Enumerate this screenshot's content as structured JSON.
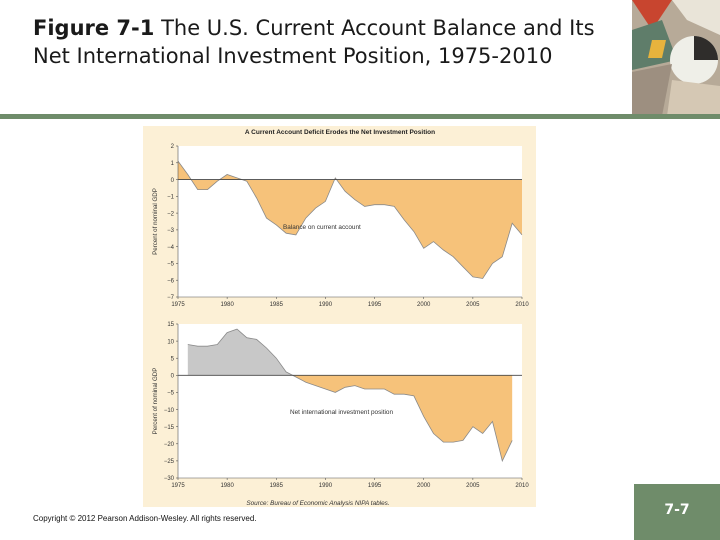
{
  "slide": {
    "figure_label": "Figure 7-1",
    "title_text": "The U.S. Current Account Balance and Its Net International Investment Position, 1975-2010",
    "copyright": "Copyright © 2012 Pearson Addison-Wesley. All rights reserved.",
    "page_number": "7-7",
    "source_note": "Source: Bureau of Economic Analysis NIPA tables.",
    "colors": {
      "panel": "#fcf0d6",
      "plot_bg": "#ffffff",
      "area_negative": "#f6c27a",
      "area_positive": "#c8c8c8",
      "line": "#8a8a8a",
      "accent": "#6f8c6a"
    }
  },
  "chart_data": [
    {
      "type": "area",
      "title": "A Current Account Deficit Erodes the Net Investment Position",
      "ylabel": "Percent of nominal GDP",
      "annotation": "Balance on current account",
      "xlim": [
        1975,
        2010
      ],
      "ylim": [
        -7,
        2
      ],
      "yticks": [
        2,
        1,
        0,
        -1,
        -2,
        -3,
        -4,
        -5,
        -6,
        -7
      ],
      "xticks": [
        1975,
        1980,
        1985,
        1990,
        1995,
        2000,
        2005,
        2010
      ],
      "x": [
        1975,
        1976,
        1977,
        1978,
        1979,
        1980,
        1981,
        1982,
        1983,
        1984,
        1985,
        1986,
        1987,
        1988,
        1989,
        1990,
        1991,
        1992,
        1993,
        1994,
        1995,
        1996,
        1997,
        1998,
        1999,
        2000,
        2001,
        2002,
        2003,
        2004,
        2005,
        2006,
        2007,
        2008,
        2009,
        2010
      ],
      "values": [
        1.1,
        0.3,
        -0.6,
        -0.6,
        -0.1,
        0.3,
        0.1,
        -0.1,
        -1.1,
        -2.3,
        -2.7,
        -3.2,
        -3.3,
        -2.3,
        -1.7,
        -1.3,
        0.1,
        -0.7,
        -1.2,
        -1.6,
        -1.5,
        -1.5,
        -1.6,
        -2.4,
        -3.1,
        -4.1,
        -3.7,
        -4.2,
        -4.6,
        -5.2,
        -5.8,
        -5.9,
        -5.0,
        -4.6,
        -2.6,
        -3.3
      ]
    },
    {
      "type": "area",
      "title": "",
      "ylabel": "Percent of nominal GDP",
      "annotation": "Net international investment position",
      "xlim": [
        1975,
        2010
      ],
      "ylim": [
        -30,
        15
      ],
      "yticks": [
        15,
        10,
        5,
        0,
        -5,
        -10,
        -15,
        -20,
        -25,
        -30
      ],
      "xticks": [
        1975,
        1980,
        1985,
        1990,
        1995,
        2000,
        2005,
        2010
      ],
      "x": [
        1976,
        1977,
        1978,
        1979,
        1980,
        1981,
        1982,
        1983,
        1984,
        1985,
        1986,
        1987,
        1988,
        1989,
        1990,
        1991,
        1992,
        1993,
        1994,
        1995,
        1996,
        1997,
        1998,
        1999,
        2000,
        2001,
        2002,
        2003,
        2004,
        2005,
        2006,
        2007,
        2008,
        2009
      ],
      "values": [
        9,
        8.5,
        8.5,
        9,
        12.5,
        13.5,
        11,
        10.5,
        8,
        5,
        1,
        -0.5,
        -2,
        -3,
        -4,
        -5,
        -3.5,
        -3,
        -4,
        -4,
        -4,
        -5.5,
        -5.5,
        -6,
        -12,
        -17,
        -19.5,
        -19.5,
        -19,
        -15,
        -17,
        -13.5,
        -25,
        -19
      ]
    }
  ]
}
